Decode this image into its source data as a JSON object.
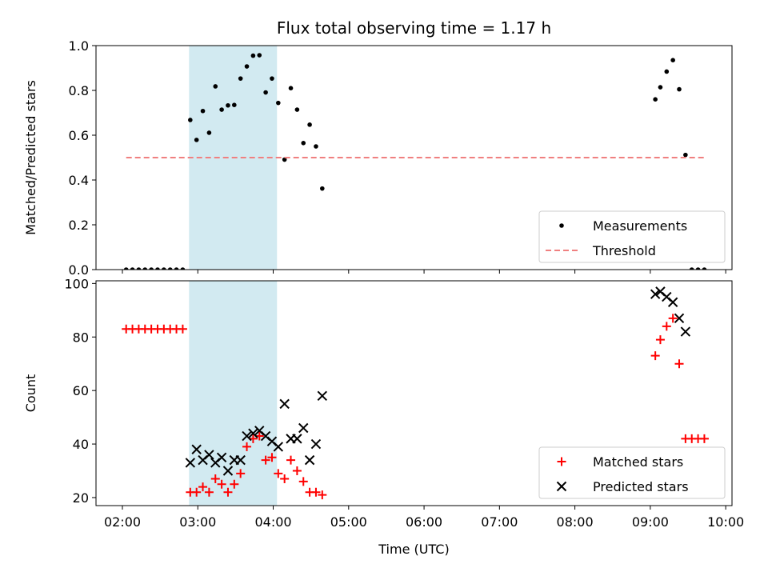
{
  "chart_data": {
    "type": "scatter",
    "title": "Flux total observing time = 1.17 h",
    "xlabel": "Time (UTC)",
    "x_ticks": [
      "02:00",
      "03:00",
      "04:00",
      "05:00",
      "06:00",
      "07:00",
      "08:00",
      "09:00",
      "10:00"
    ],
    "xlim": [
      "01:39",
      "10:05"
    ],
    "highlight_span": [
      "02:53",
      "04:03"
    ],
    "highlight_color": "#add8e6",
    "panels": [
      {
        "ylabel": "Matched/Predicted stars",
        "ylim": [
          0,
          1
        ],
        "y_ticks": [
          "0.0",
          "0.2",
          "0.4",
          "0.6",
          "0.8",
          "1.0"
        ],
        "legend_position": "lower-right",
        "series": [
          {
            "name": "Measurements",
            "marker": "dot",
            "color": "#000000",
            "points": [
              [
                "02:03",
                0
              ],
              [
                "02:08",
                0
              ],
              [
                "02:13",
                0
              ],
              [
                "02:18",
                0
              ],
              [
                "02:23",
                0
              ],
              [
                "02:28",
                0
              ],
              [
                "02:33",
                0
              ],
              [
                "02:38",
                0
              ],
              [
                "02:43",
                0
              ],
              [
                "02:48",
                0
              ],
              [
                "02:54",
                0.668
              ],
              [
                "02:59",
                0.579
              ],
              [
                "03:04",
                0.708
              ],
              [
                "03:09",
                0.611
              ],
              [
                "03:14",
                0.818
              ],
              [
                "03:19",
                0.714
              ],
              [
                "03:24",
                0.733
              ],
              [
                "03:29",
                0.735
              ],
              [
                "03:34",
                0.853
              ],
              [
                "03:39",
                0.907
              ],
              [
                "03:44",
                0.955
              ],
              [
                "03:49",
                0.957
              ],
              [
                "03:54",
                0.791
              ],
              [
                "03:59",
                0.853
              ],
              [
                "04:04",
                0.744
              ],
              [
                "04:09",
                0.491
              ],
              [
                "04:14",
                0.81
              ],
              [
                "04:19",
                0.714
              ],
              [
                "04:24",
                0.565
              ],
              [
                "04:29",
                0.647
              ],
              [
                "04:34",
                0.55
              ],
              [
                "04:39",
                0.362
              ],
              [
                "09:04",
                0.76
              ],
              [
                "09:08",
                0.814
              ],
              [
                "09:13",
                0.884
              ],
              [
                "09:18",
                0.935
              ],
              [
                "09:23",
                0.805
              ],
              [
                "09:28",
                0.512
              ],
              [
                "09:33",
                0
              ],
              [
                "09:38",
                0
              ],
              [
                "09:43",
                0
              ]
            ]
          },
          {
            "name": "Threshold",
            "marker": "dashed-line",
            "color": "#f08080",
            "points": [
              [
                "02:03",
                0.5
              ],
              [
                "09:43",
                0.5
              ]
            ]
          }
        ]
      },
      {
        "ylabel": "Count",
        "ylim": [
          17,
          101
        ],
        "y_ticks": [
          "20",
          "40",
          "60",
          "80",
          "100"
        ],
        "legend_position": "lower-right",
        "series": [
          {
            "name": "Matched stars",
            "marker": "plus",
            "color": "#ff0000",
            "points": [
              [
                "02:03",
                83
              ],
              [
                "02:08",
                83
              ],
              [
                "02:13",
                83
              ],
              [
                "02:18",
                83
              ],
              [
                "02:23",
                83
              ],
              [
                "02:28",
                83
              ],
              [
                "02:33",
                83
              ],
              [
                "02:38",
                83
              ],
              [
                "02:43",
                83
              ],
              [
                "02:48",
                83
              ],
              [
                "02:54",
                22
              ],
              [
                "02:59",
                22
              ],
              [
                "03:04",
                24
              ],
              [
                "03:09",
                22
              ],
              [
                "03:14",
                27
              ],
              [
                "03:19",
                25
              ],
              [
                "03:24",
                22
              ],
              [
                "03:29",
                25
              ],
              [
                "03:34",
                29
              ],
              [
                "03:39",
                39
              ],
              [
                "03:44",
                42
              ],
              [
                "03:49",
                43
              ],
              [
                "03:54",
                34
              ],
              [
                "03:59",
                35
              ],
              [
                "04:04",
                29
              ],
              [
                "04:09",
                27
              ],
              [
                "04:14",
                34
              ],
              [
                "04:19",
                30
              ],
              [
                "04:24",
                26
              ],
              [
                "04:29",
                22
              ],
              [
                "04:34",
                22
              ],
              [
                "04:39",
                21
              ],
              [
                "09:04",
                73
              ],
              [
                "09:08",
                79
              ],
              [
                "09:13",
                84
              ],
              [
                "09:18",
                87
              ],
              [
                "09:23",
                70
              ],
              [
                "09:28",
                42
              ],
              [
                "09:33",
                42
              ],
              [
                "09:38",
                42
              ],
              [
                "09:43",
                42
              ]
            ]
          },
          {
            "name": "Predicted stars",
            "marker": "x",
            "color": "#000000",
            "points": [
              [
                "02:54",
                33
              ],
              [
                "02:59",
                38
              ],
              [
                "03:04",
                34
              ],
              [
                "03:09",
                36
              ],
              [
                "03:14",
                33
              ],
              [
                "03:19",
                35
              ],
              [
                "03:24",
                30
              ],
              [
                "03:29",
                34
              ],
              [
                "03:34",
                34
              ],
              [
                "03:39",
                43
              ],
              [
                "03:44",
                44
              ],
              [
                "03:49",
                45
              ],
              [
                "03:54",
                43
              ],
              [
                "03:59",
                41
              ],
              [
                "04:04",
                39
              ],
              [
                "04:09",
                55
              ],
              [
                "04:14",
                42
              ],
              [
                "04:19",
                42
              ],
              [
                "04:24",
                46
              ],
              [
                "04:29",
                34
              ],
              [
                "04:34",
                40
              ],
              [
                "04:39",
                58
              ],
              [
                "09:04",
                96
              ],
              [
                "09:08",
                97
              ],
              [
                "09:13",
                95
              ],
              [
                "09:18",
                93
              ],
              [
                "09:23",
                87
              ],
              [
                "09:28",
                82
              ]
            ]
          }
        ]
      }
    ]
  }
}
